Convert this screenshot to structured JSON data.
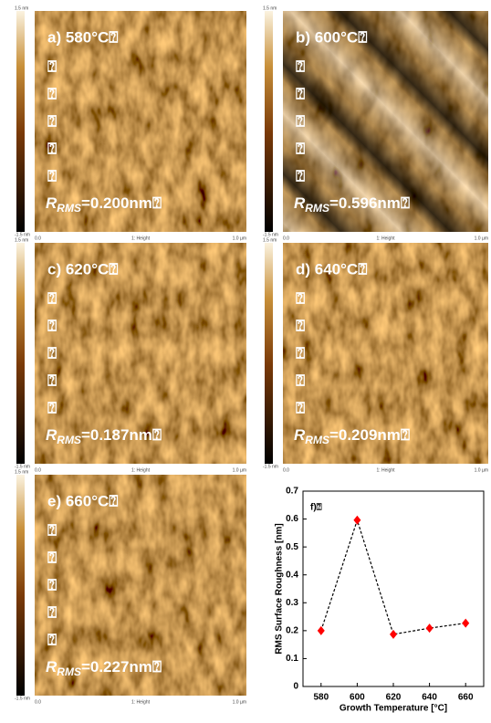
{
  "panels": [
    {
      "label": "a) 580°C⍰",
      "marks": [
        "⍰",
        "⍰",
        "⍰",
        "⍰",
        "⍰"
      ],
      "rms_symbol": "R",
      "rms_sub": "RMS",
      "rms_value": "=0.200nm⍰",
      "scale_top": "1.5 nm",
      "scale_bottom": "-1.5 nm",
      "x_start": "0.0",
      "x_mid": "1: Height",
      "x_end": "1.0 µm"
    },
    {
      "label": "b) 600°C⍰",
      "marks": [
        "⍰",
        "⍰",
        "⍰",
        "⍰",
        "⍰"
      ],
      "rms_symbol": "R",
      "rms_sub": "RMS",
      "rms_value": "=0.596nm⍰",
      "scale_top": "1.5 nm",
      "scale_bottom": "-1.5 nm",
      "x_start": "0.0",
      "x_mid": "1: Height",
      "x_end": "1.0 µm"
    },
    {
      "label": "c) 620°C⍰",
      "marks": [
        "⍰",
        "⍰",
        "⍰",
        "⍰",
        "⍰"
      ],
      "rms_symbol": "R",
      "rms_sub": "RMS",
      "rms_value": "=0.187nm⍰",
      "scale_top": "1.5 nm",
      "scale_bottom": "-1.5 nm",
      "x_start": "0.0",
      "x_mid": "1: Height",
      "x_end": "1.0 µm"
    },
    {
      "label": "d) 640°C⍰",
      "marks": [
        "⍰",
        "⍰",
        "⍰",
        "⍰",
        "⍰"
      ],
      "rms_symbol": "R",
      "rms_sub": "RMS",
      "rms_value": "=0.209nm⍰",
      "scale_top": "1.5 nm",
      "scale_bottom": "-1.5 nm",
      "x_start": "0.0",
      "x_mid": "1: Height",
      "x_end": "1.0 µm"
    },
    {
      "label": "e) 660°C⍰",
      "marks": [
        "⍰",
        "⍰",
        "⍰",
        "⍰",
        "⍰"
      ],
      "rms_symbol": "R",
      "rms_sub": "RMS",
      "rms_value": "=0.227nm⍰",
      "scale_top": "1.5 nm",
      "scale_bottom": "-1.5 nm",
      "x_start": "0.0",
      "x_mid": "1: Height",
      "x_end": "1.0 µm"
    }
  ],
  "chart_data": {
    "type": "line",
    "title": "f)⍰",
    "x_label": "Growth Temperature [°C]",
    "y_label": "RMS Surface Roughness [nm]",
    "x": [
      580,
      600,
      620,
      640,
      660
    ],
    "values": [
      0.2,
      0.596,
      0.187,
      0.209,
      0.227
    ],
    "line_color": "#000000",
    "marker_color": "#ff0000",
    "line_style": "dashed",
    "xlim": [
      570,
      670
    ],
    "xticks": [
      580,
      600,
      620,
      640,
      660
    ],
    "ylim": [
      0,
      0.7
    ],
    "yticks": [
      0,
      0.1,
      0.2,
      0.3,
      0.4,
      0.5,
      0.6,
      0.7
    ]
  }
}
